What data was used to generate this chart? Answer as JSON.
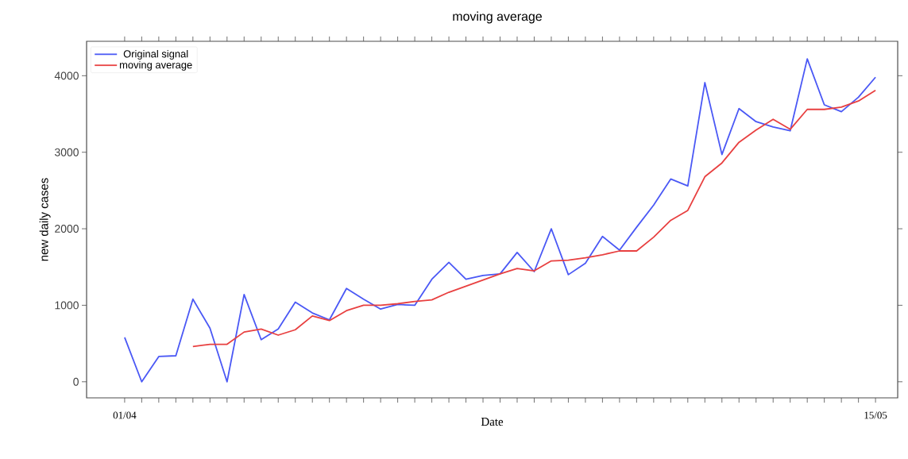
{
  "chart_data": {
    "type": "line",
    "title": "moving average",
    "xlabel": "Date",
    "ylabel": "new daily cases",
    "categories": [
      "01/04",
      null,
      null,
      null,
      null,
      null,
      null,
      null,
      null,
      null,
      null,
      null,
      null,
      null,
      null,
      null,
      null,
      null,
      null,
      null,
      null,
      null,
      null,
      null,
      null,
      null,
      null,
      null,
      null,
      null,
      null,
      null,
      null,
      null,
      null,
      null,
      null,
      null,
      null,
      null,
      null,
      null,
      null,
      null,
      "15/05"
    ],
    "series": [
      {
        "name": "Original signal",
        "color": "#4a58f5",
        "values": [
          580,
          0,
          330,
          340,
          1080,
          700,
          0,
          1140,
          550,
          690,
          1040,
          900,
          810,
          1220,
          1080,
          950,
          1010,
          1000,
          1340,
          1560,
          1340,
          1390,
          1410,
          1690,
          1440,
          2000,
          1400,
          1550,
          1900,
          1720,
          2020,
          2310,
          2650,
          2560,
          3910,
          2970,
          3570,
          3400,
          3330,
          3280,
          4220,
          3620,
          3530,
          3720,
          3980
        ]
      },
      {
        "name": "moving average",
        "color": "#e84040",
        "values": [
          null,
          null,
          null,
          null,
          460,
          490,
          490,
          650,
          690,
          610,
          680,
          860,
          800,
          930,
          1000,
          1000,
          1020,
          1050,
          1070,
          1170,
          1250,
          1330,
          1410,
          1480,
          1450,
          1580,
          1590,
          1620,
          1660,
          1710,
          1710,
          1890,
          2110,
          2240,
          2680,
          2860,
          3130,
          3290,
          3430,
          3300,
          3560,
          3560,
          3590,
          3670,
          3810
        ]
      }
    ],
    "ylim": [
      -210,
      4450
    ],
    "yticks": [
      0,
      1000,
      2000,
      3000,
      4000
    ],
    "legend": "top left",
    "grid": false
  }
}
